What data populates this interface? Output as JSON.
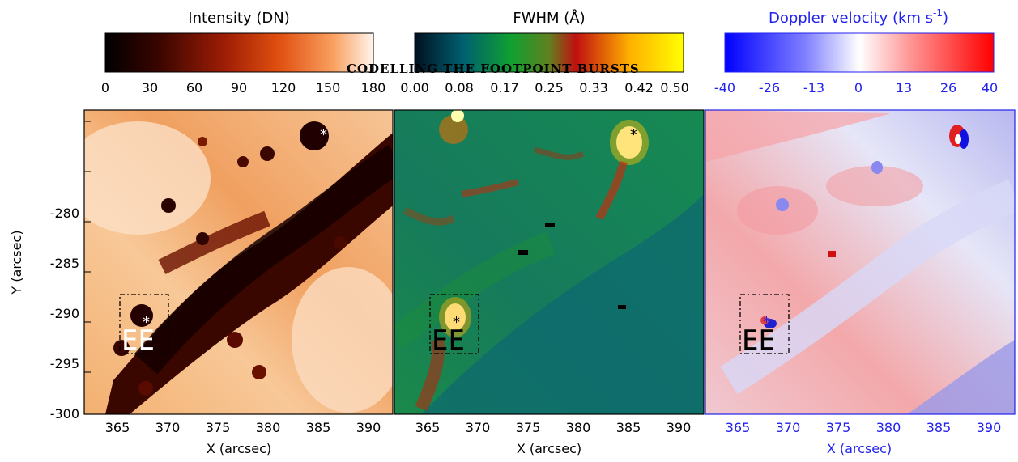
{
  "header_overlay": "CODELLING THE FOOTPOINT BURSTS",
  "colorbars": [
    {
      "title": "Intensity (DN)",
      "ticks": [
        "0",
        "30",
        "60",
        "90",
        "120",
        "150",
        "180"
      ],
      "title_color": "#000000"
    },
    {
      "title": "FWHM (Å)",
      "ticks": [
        "0.00",
        "0.08",
        "0.17",
        "0.25",
        "0.33",
        "0.42",
        "0.50"
      ],
      "title_color": "#000000"
    },
    {
      "title_main": "Doppler velocity (km s",
      "title_sup": "-1",
      "title_close": ")",
      "ticks": [
        "-40",
        "-26",
        "-13",
        "0",
        "13",
        "26",
        "40"
      ],
      "title_color": "#2222ee"
    }
  ],
  "panels": [
    {
      "name": "intensity",
      "box_label": "EE",
      "marker": "*"
    },
    {
      "name": "fwhm",
      "box_label": "EE",
      "marker": "*"
    },
    {
      "name": "doppler",
      "box_label": "EE",
      "marker": "*"
    }
  ],
  "x_axis": {
    "label": "X (arcsec)",
    "ticks": [
      "365",
      "370",
      "375",
      "380",
      "385",
      "390"
    ]
  },
  "y_axis": {
    "label": "Y (arcsec)",
    "ticks": [
      "-280",
      "-285",
      "-290",
      "-295",
      "-300"
    ]
  },
  "colors": {
    "doppler_axis": "#2222ee"
  }
}
